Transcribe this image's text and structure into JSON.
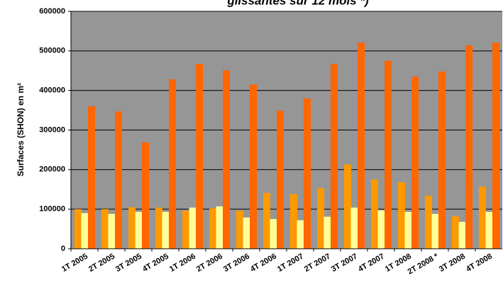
{
  "chart_data": {
    "type": "bar",
    "title": "glissantes sur 12 mois *)",
    "y_label": "Surfaces (SHON) en m²",
    "categories": [
      "1T 2005",
      "2T 2005",
      "3T 2005",
      "4T 2005",
      "1T 2006",
      "2T 2006",
      "3T 2006",
      "4T 2006",
      "1T 2007",
      "2T 2007",
      "3T 2007",
      "4T 2007",
      "1T 2008",
      "2T 2008 *",
      "3T 2008",
      "4T 2008"
    ],
    "series": [
      {
        "color": "#ff9900",
        "values": [
          100000,
          100000,
          105000,
          104000,
          96000,
          102000,
          96000,
          141000,
          138000,
          153000,
          213000,
          175000,
          168000,
          134000,
          82000,
          157000
        ]
      },
      {
        "color": "#ffff99",
        "values": [
          90000,
          88000,
          93000,
          93000,
          104000,
          107000,
          79000,
          75000,
          72000,
          81000,
          104000,
          97000,
          93000,
          88000,
          68000,
          93000
        ]
      },
      {
        "color": "#ff6600",
        "values": [
          360000,
          347000,
          269000,
          428000,
          467000,
          451000,
          415000,
          349000,
          380000,
          467000,
          521000,
          475000,
          435000,
          448000,
          514000,
          521000
        ]
      }
    ],
    "ylim": [
      0,
      600000
    ],
    "yticks": [
      0,
      100000,
      200000,
      300000,
      400000,
      500000,
      600000
    ],
    "grid": true,
    "plot_background": "#969696"
  }
}
